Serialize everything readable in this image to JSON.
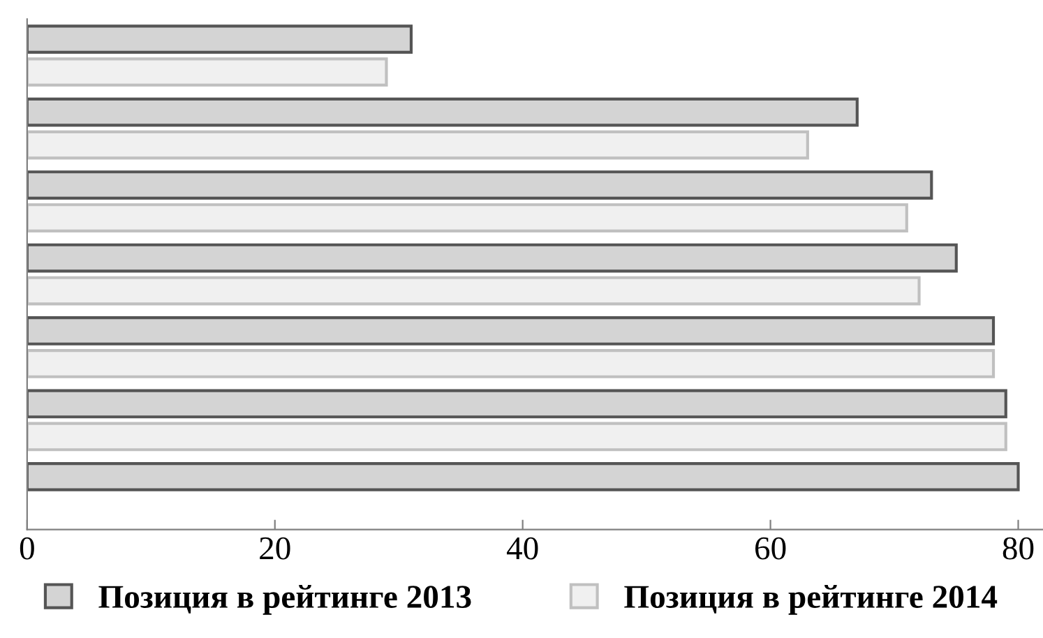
{
  "chart_data": {
    "type": "bar",
    "orientation": "horizontal",
    "categories": [
      null,
      null,
      null,
      null,
      null,
      null,
      null
    ],
    "series": [
      {
        "name": "Позиция в рейтинге 2013",
        "color": "#d4d4d4",
        "values": [
          31,
          67,
          73,
          75,
          78,
          79,
          80
        ]
      },
      {
        "name": "Позиция в рейтинге 2014",
        "color": "#f0f0f0",
        "values": [
          29,
          63,
          71,
          72,
          78,
          79,
          null
        ]
      }
    ],
    "xlim": [
      0,
      82
    ],
    "xticks": [
      0,
      20,
      40,
      60,
      80
    ],
    "tick_labels": "x",
    "grid": false,
    "legend": "bottom"
  }
}
